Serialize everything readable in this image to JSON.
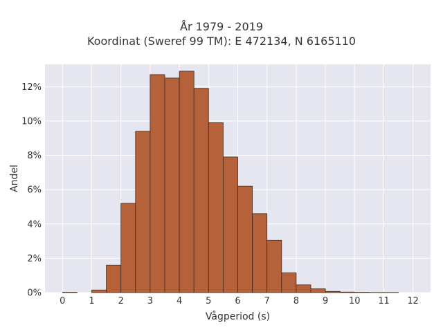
{
  "chart_data": {
    "type": "bar",
    "title_lines": [
      "År 1979 - 2019",
      "Koordinat (Sweref 99 TM): E 472134, N 6165110"
    ],
    "xlabel": "Vågperiod (s)",
    "ylabel": "Andel",
    "x_ticks": [
      0,
      1,
      2,
      3,
      4,
      5,
      6,
      7,
      8,
      9,
      10,
      11,
      12
    ],
    "y_ticks": [
      "0%",
      "2%",
      "4%",
      "6%",
      "8%",
      "10%",
      "12%"
    ],
    "xlim": [
      -0.6,
      12.6
    ],
    "ylim": [
      0,
      13.3
    ],
    "bin_width": 0.5,
    "bins": [
      {
        "start": 0.0,
        "end": 0.5,
        "value": 0.02
      },
      {
        "start": 0.5,
        "end": 1.0,
        "value": 0.0
      },
      {
        "start": 1.0,
        "end": 1.5,
        "value": 0.15
      },
      {
        "start": 1.5,
        "end": 2.0,
        "value": 1.6
      },
      {
        "start": 2.0,
        "end": 2.5,
        "value": 5.2
      },
      {
        "start": 2.5,
        "end": 3.0,
        "value": 9.4
      },
      {
        "start": 3.0,
        "end": 3.5,
        "value": 12.7
      },
      {
        "start": 3.5,
        "end": 4.0,
        "value": 12.5
      },
      {
        "start": 4.0,
        "end": 4.5,
        "value": 12.9
      },
      {
        "start": 4.5,
        "end": 5.0,
        "value": 11.9
      },
      {
        "start": 5.0,
        "end": 5.5,
        "value": 9.9
      },
      {
        "start": 5.5,
        "end": 6.0,
        "value": 7.9
      },
      {
        "start": 6.0,
        "end": 6.5,
        "value": 6.2
      },
      {
        "start": 6.5,
        "end": 7.0,
        "value": 4.6
      },
      {
        "start": 7.0,
        "end": 7.5,
        "value": 3.05
      },
      {
        "start": 7.5,
        "end": 8.0,
        "value": 1.15
      },
      {
        "start": 8.0,
        "end": 8.5,
        "value": 0.45
      },
      {
        "start": 8.5,
        "end": 9.0,
        "value": 0.22
      },
      {
        "start": 9.0,
        "end": 9.5,
        "value": 0.07
      },
      {
        "start": 9.5,
        "end": 10.0,
        "value": 0.03
      },
      {
        "start": 10.0,
        "end": 10.5,
        "value": 0.02
      },
      {
        "start": 10.5,
        "end": 11.0,
        "value": 0.01
      },
      {
        "start": 11.0,
        "end": 11.5,
        "value": 0.01
      },
      {
        "start": 11.5,
        "end": 12.0,
        "value": 0.0
      }
    ],
    "grid": true,
    "colors": {
      "bar_fill": "#b5623a",
      "bar_edge": "#3d2a1c",
      "plot_background": "#e5e6ef",
      "grid": "#ffffff"
    }
  }
}
